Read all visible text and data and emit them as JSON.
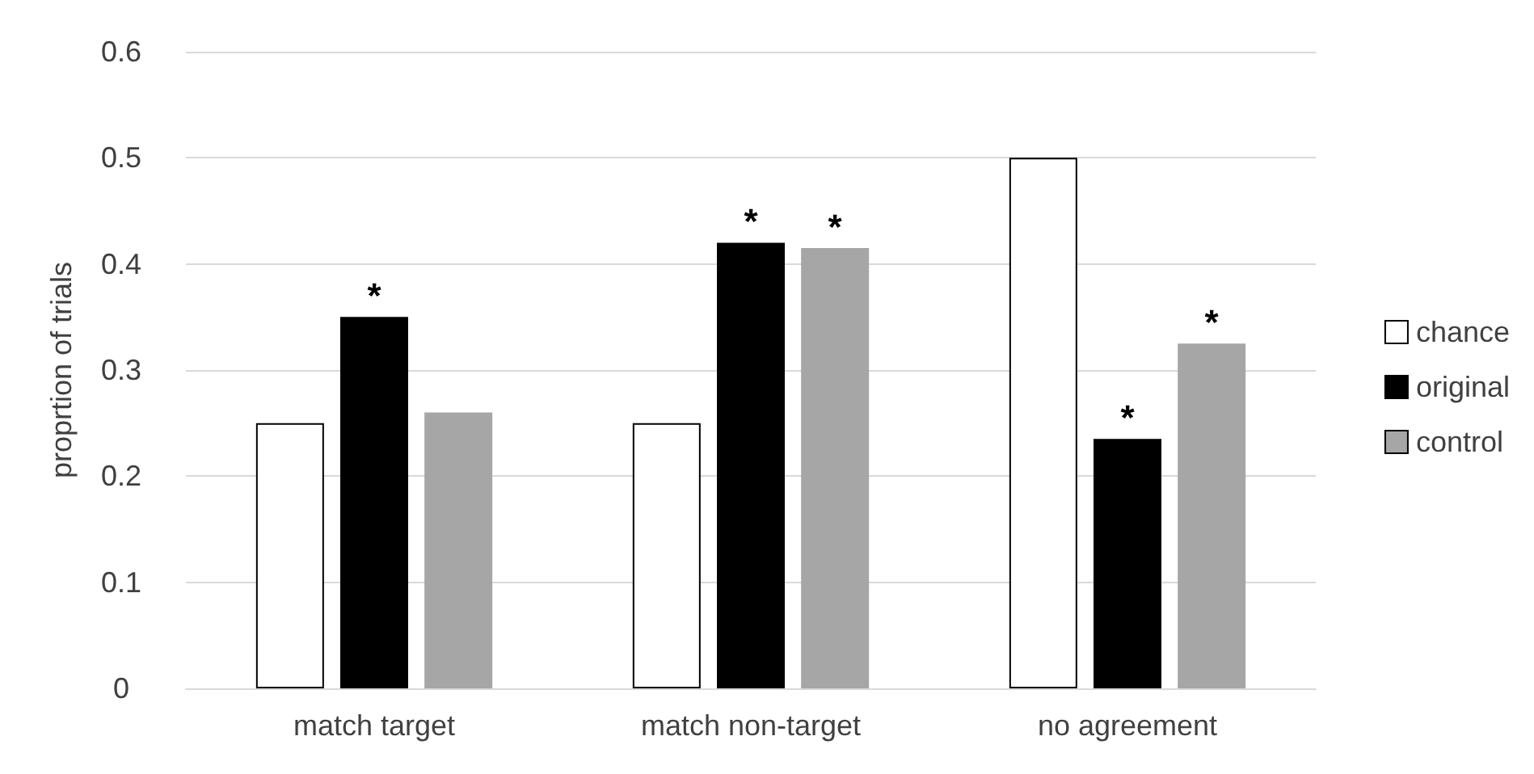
{
  "chart_data": {
    "type": "bar",
    "ylabel": "proprtion of trials",
    "categories": [
      "match target",
      "match non-target",
      "no agreement"
    ],
    "series": [
      {
        "name": "chance",
        "color": "#ffffff",
        "values": [
          0.25,
          0.25,
          0.5
        ]
      },
      {
        "name": "original",
        "color": "#000000",
        "values": [
          0.35,
          0.42,
          0.235
        ],
        "value_labels": [
          "*",
          "*",
          "*"
        ]
      },
      {
        "name": "control",
        "color": "#a6a6a6",
        "values": [
          0.26,
          0.415,
          0.325
        ],
        "value_labels": [
          null,
          "*",
          "*"
        ]
      }
    ],
    "ylim": [
      0,
      0.6
    ],
    "yticks": [
      0,
      0.1,
      0.2,
      0.3,
      0.4,
      0.5,
      0.6
    ],
    "grid": "y",
    "legend": "right"
  }
}
